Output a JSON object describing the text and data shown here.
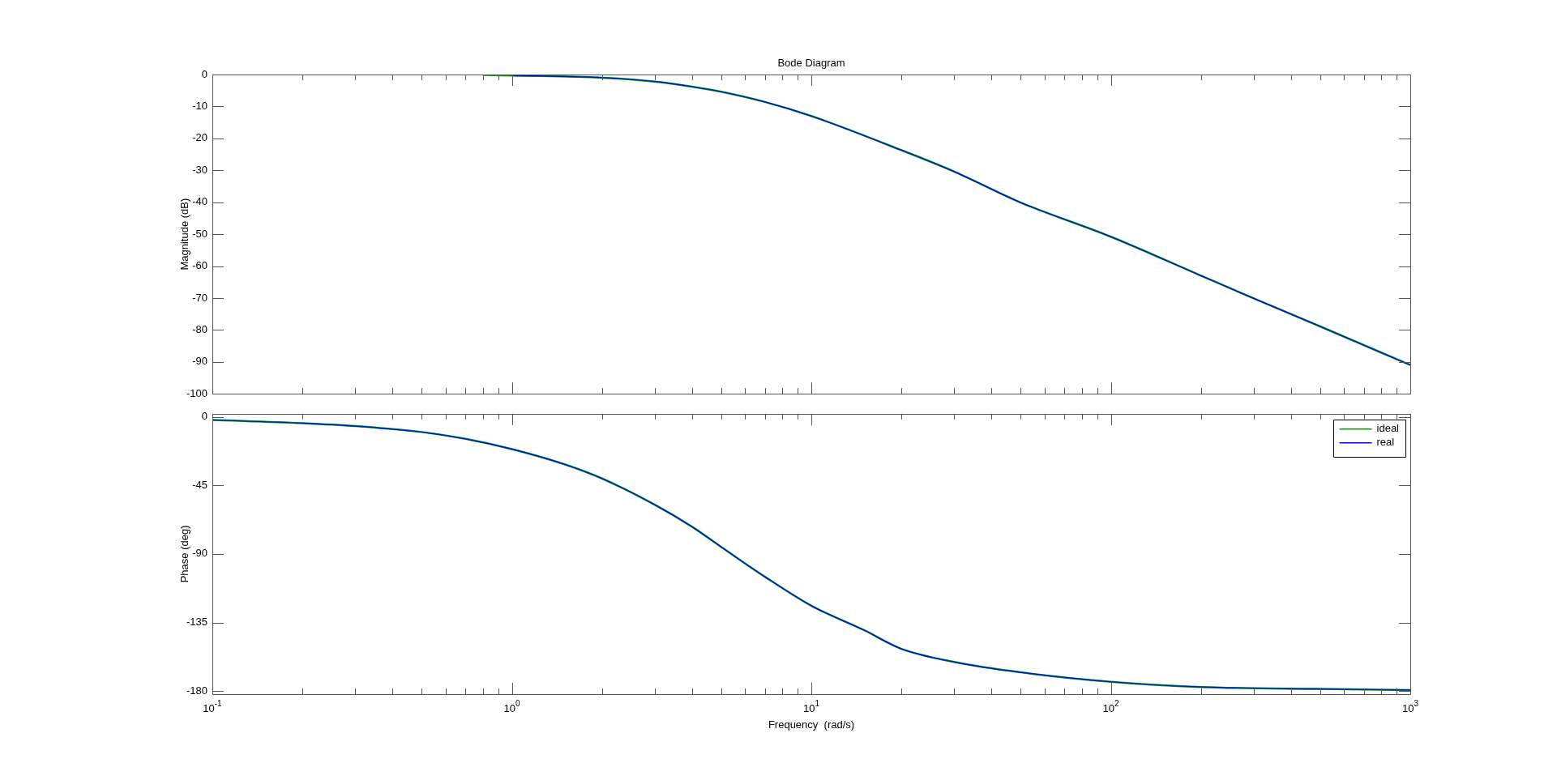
{
  "chart_data": [
    {
      "type": "line",
      "title": "Bode Diagram",
      "ylabel": "Magnitude (dB)",
      "log": "x",
      "grid": false,
      "legend": false,
      "tick_labels": "y",
      "marker": "none",
      "line_style": "solid",
      "x": [
        0.8,
        1,
        2,
        3,
        4,
        5,
        7,
        10,
        20,
        30,
        50,
        100,
        200,
        300,
        500,
        1000
      ],
      "xlim": [
        0.1,
        1000
      ],
      "xticks": [
        {
          "value": 0.1,
          "label": null
        },
        {
          "value": 0.2,
          "label": null
        },
        {
          "value": 0.3,
          "label": null
        },
        {
          "value": 0.4,
          "label": null
        },
        {
          "value": 0.5,
          "label": null
        },
        {
          "value": 0.6,
          "label": null
        },
        {
          "value": 0.7,
          "label": null
        },
        {
          "value": 0.8,
          "label": null
        },
        {
          "value": 0.9,
          "label": null
        },
        {
          "value": 1,
          "label": null
        },
        {
          "value": 2,
          "label": null
        },
        {
          "value": 3,
          "label": null
        },
        {
          "value": 4,
          "label": null
        },
        {
          "value": 5,
          "label": null
        },
        {
          "value": 6,
          "label": null
        },
        {
          "value": 7,
          "label": null
        },
        {
          "value": 8,
          "label": null
        },
        {
          "value": 9,
          "label": null
        },
        {
          "value": 10,
          "label": null
        },
        {
          "value": 20,
          "label": null
        },
        {
          "value": 30,
          "label": null
        },
        {
          "value": 40,
          "label": null
        },
        {
          "value": 50,
          "label": null
        },
        {
          "value": 60,
          "label": null
        },
        {
          "value": 70,
          "label": null
        },
        {
          "value": 80,
          "label": null
        },
        {
          "value": 90,
          "label": null
        },
        {
          "value": 100,
          "label": null
        },
        {
          "value": 200,
          "label": null
        },
        {
          "value": 300,
          "label": null
        },
        {
          "value": 400,
          "label": null
        },
        {
          "value": 500,
          "label": null
        },
        {
          "value": 600,
          "label": null
        },
        {
          "value": 700,
          "label": null
        },
        {
          "value": 800,
          "label": null
        },
        {
          "value": 900,
          "label": null
        },
        {
          "value": 1000,
          "label": null
        }
      ],
      "ylim": [
        -100,
        0
      ],
      "yticks": [
        0,
        -10,
        -20,
        -30,
        -40,
        -50,
        -60,
        -70,
        -80,
        -90,
        -100
      ],
      "series": [
        {
          "color": "#00a000",
          "values": [
            -0.1,
            -0.3,
            -1,
            -2.2,
            -3.8,
            -5.4,
            -8.6,
            -13,
            -23.7,
            -30.4,
            -40.1,
            -50.8,
            -63,
            -70.1,
            -78.9,
            -91
          ]
        },
        {
          "color": "#0000ff",
          "values": [
            null,
            -0.3,
            -1,
            -2.2,
            -3.8,
            -5.4,
            -8.6,
            -13,
            -23.7,
            -30.4,
            -40.1,
            -50.8,
            -63,
            -70.1,
            -78.9,
            -91
          ]
        }
      ]
    },
    {
      "type": "line",
      "xlabel": "Frequency  (rad/s)",
      "ylabel": "Phase (deg)",
      "log": "x",
      "grid": false,
      "legend": "top right",
      "marker": "none",
      "line_style": "solid",
      "x": [
        0.1,
        0.2,
        0.3,
        0.5,
        0.7,
        1,
        1.5,
        2,
        3,
        4,
        5,
        7,
        10,
        15,
        20,
        30,
        50,
        100,
        200,
        500,
        1000
      ],
      "xlim": [
        0.1,
        1000
      ],
      "xticks": [
        {
          "value": 0.1,
          "label": "10$^{-1}$"
        },
        {
          "value": 0.2,
          "label": null
        },
        {
          "value": 0.3,
          "label": null
        },
        {
          "value": 0.4,
          "label": null
        },
        {
          "value": 0.5,
          "label": null
        },
        {
          "value": 0.6,
          "label": null
        },
        {
          "value": 0.7,
          "label": null
        },
        {
          "value": 0.8,
          "label": null
        },
        {
          "value": 0.9,
          "label": null
        },
        {
          "value": 1,
          "label": "10$^{0}$"
        },
        {
          "value": 2,
          "label": null
        },
        {
          "value": 3,
          "label": null
        },
        {
          "value": 4,
          "label": null
        },
        {
          "value": 5,
          "label": null
        },
        {
          "value": 6,
          "label": null
        },
        {
          "value": 7,
          "label": null
        },
        {
          "value": 8,
          "label": null
        },
        {
          "value": 9,
          "label": null
        },
        {
          "value": 10,
          "label": "10$^{1}$"
        },
        {
          "value": 20,
          "label": null
        },
        {
          "value": 30,
          "label": null
        },
        {
          "value": 40,
          "label": null
        },
        {
          "value": 50,
          "label": null
        },
        {
          "value": 60,
          "label": null
        },
        {
          "value": 70,
          "label": null
        },
        {
          "value": 80,
          "label": null
        },
        {
          "value": 90,
          "label": null
        },
        {
          "value": 100,
          "label": "10$^{2}$"
        },
        {
          "value": 200,
          "label": null
        },
        {
          "value": 300,
          "label": null
        },
        {
          "value": 400,
          "label": null
        },
        {
          "value": 500,
          "label": null
        },
        {
          "value": 600,
          "label": null
        },
        {
          "value": 700,
          "label": null
        },
        {
          "value": 800,
          "label": null
        },
        {
          "value": 900,
          "label": null
        },
        {
          "value": 1000,
          "label": "10$^{3}$"
        }
      ],
      "ylim": [
        -182,
        2
      ],
      "yticks": [
        0,
        -45,
        -90,
        -135,
        -180
      ],
      "series": [
        {
          "name": "ideal",
          "color": "#00a000",
          "values": [
            -2.1,
            -4.2,
            -6.1,
            -10,
            -14.5,
            -21.2,
            -31.2,
            -40.5,
            -57.7,
            -72.2,
            -85.4,
            -105,
            -124,
            -140,
            -152.3,
            -160.9,
            -167.7,
            -173.9,
            -177.3,
            -178.6,
            -179.3
          ]
        },
        {
          "name": "real",
          "color": "#0000ff",
          "values": [
            -2.1,
            -4.2,
            -6.1,
            -10,
            -14.5,
            -21.2,
            -31.2,
            -40.5,
            -57.7,
            -72.2,
            -85.4,
            -105,
            -124,
            -140,
            -152.3,
            -160.9,
            -167.7,
            -173.9,
            -177.3,
            -178.6,
            -179.3
          ]
        }
      ]
    }
  ]
}
